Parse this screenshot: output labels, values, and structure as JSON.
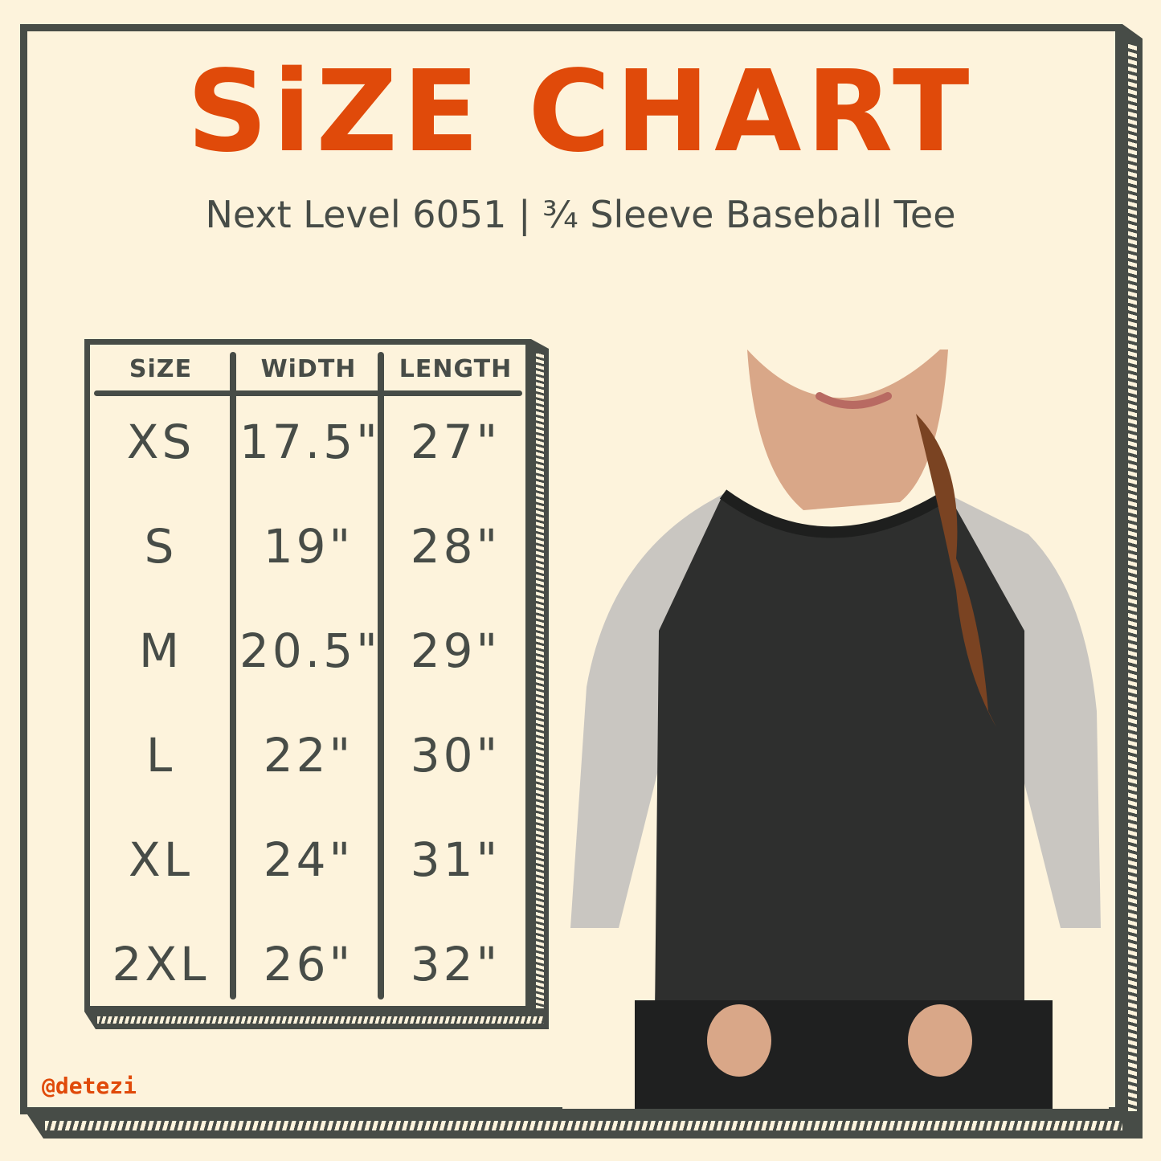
{
  "title": "SiZE CHART",
  "subtitle": "Next Level 6051 | ¾ Sleeve Baseball Tee",
  "table": {
    "headers": [
      "SiZE",
      "WiDTH",
      "LENGTH"
    ],
    "rows": [
      [
        "XS",
        "17.5\"",
        "27\""
      ],
      [
        "S",
        "19\"",
        "28\""
      ],
      [
        "M",
        "20.5\"",
        "29\""
      ],
      [
        "L",
        "22\"",
        "30\""
      ],
      [
        "XL",
        "24\"",
        "31\""
      ],
      [
        "2XL",
        "26\"",
        "32\""
      ]
    ]
  },
  "watermark": "@detezi",
  "colors": {
    "background": "#fdf3dc",
    "ink": "#474c47",
    "accent": "#e04a0a"
  }
}
